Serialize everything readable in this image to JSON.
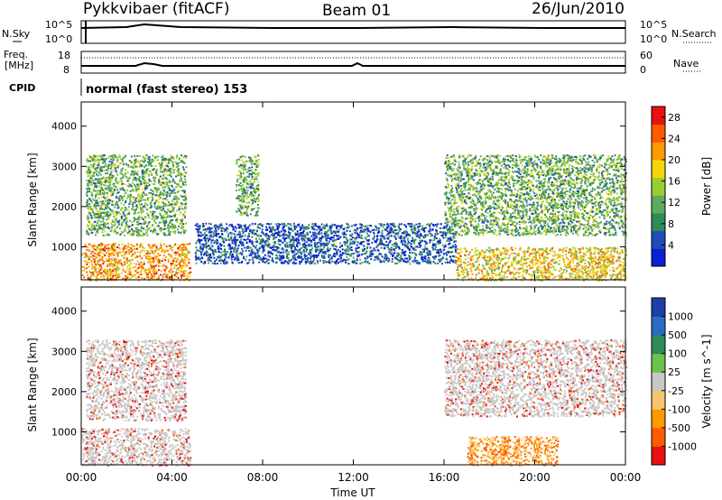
{
  "header": {
    "radar": "Pykkvibaer (fitACF)",
    "beam": "Beam 01",
    "date": "26/Jun/2010"
  },
  "noise_panel": {
    "left_label": "N.Sky",
    "left_ticks": [
      "10^5",
      "10^0"
    ],
    "right_label": "N.Search",
    "right_ticks": [
      "10^5",
      "10^0"
    ]
  },
  "freq_panel": {
    "left_label_line1": "Freq.",
    "left_label_line2": "[MHz]",
    "left_ticks": [
      "18",
      "8"
    ],
    "right_label": "Nave",
    "right_ticks": [
      "60",
      "0"
    ]
  },
  "cpid": {
    "label": "CPID",
    "value": "normal (fast stereo) 153"
  },
  "colors": {
    "power_scale": [
      "#0b1fd6",
      "#1e4db8",
      "#2e8b57",
      "#5faa5f",
      "#9acd32",
      "#f2d60a",
      "#ff9a00",
      "#ff5a00",
      "#e81010"
    ],
    "velocity_scale": [
      "#1e3fa8",
      "#2a6cc2",
      "#2e8b57",
      "#6cc24a",
      "#c8c8c8",
      "#f7c66a",
      "#ff9a00",
      "#ff5a00",
      "#e81010"
    ]
  },
  "chart_data": [
    {
      "type": "heatmap",
      "name": "power",
      "ylabel": "Slant Range [km]",
      "y_ticks": [
        1000,
        2000,
        3000,
        4000
      ],
      "ylim": [
        180,
        4600
      ],
      "x_ticks": [
        "00:00",
        "04:00",
        "08:00",
        "12:00",
        "16:00",
        "20:00",
        "00:00"
      ],
      "xlim_hours": [
        0,
        24
      ],
      "colorbar": {
        "label": "Power [dB]",
        "ticks": [
          4,
          8,
          12,
          16,
          20,
          24,
          28
        ],
        "range": [
          0,
          30
        ]
      },
      "regions": [
        {
          "t": [
            0.2,
            4.6
          ],
          "r": [
            1300,
            3300
          ],
          "value": 12
        },
        {
          "t": [
            0.0,
            4.8
          ],
          "r": [
            180,
            1100
          ],
          "value": 22
        },
        {
          "t": [
            6.8,
            7.8
          ],
          "r": [
            1800,
            3300
          ],
          "value": 10
        },
        {
          "t": [
            5.0,
            16.5
          ],
          "r": [
            600,
            1600
          ],
          "value": 6
        },
        {
          "t": [
            16.0,
            24.0
          ],
          "r": [
            1300,
            3300
          ],
          "value": 10
        },
        {
          "t": [
            16.5,
            24.0
          ],
          "r": [
            180,
            1000
          ],
          "value": 18
        }
      ]
    },
    {
      "type": "heatmap",
      "name": "velocity",
      "ylabel": "Slant Range [km]",
      "y_ticks": [
        1000,
        2000,
        3000,
        4000
      ],
      "ylim": [
        180,
        4600
      ],
      "x_ticks": [
        "00:00",
        "04:00",
        "08:00",
        "12:00",
        "16:00",
        "20:00",
        "00:00"
      ],
      "xlabel": "Time UT",
      "xlim_hours": [
        0,
        24
      ],
      "colorbar": {
        "label": "Velocity [m s^-1]",
        "ticks": [
          1000,
          500,
          100,
          25,
          -25,
          -100,
          -500,
          -1000
        ]
      },
      "regions": [
        {
          "t": [
            0.2,
            4.6
          ],
          "r": [
            1300,
            3300
          ],
          "value": 0
        },
        {
          "t": [
            0.0,
            4.8
          ],
          "r": [
            180,
            1100
          ],
          "value": 0
        },
        {
          "t": [
            16.0,
            24.0
          ],
          "r": [
            1400,
            3300
          ],
          "value": 0
        },
        {
          "t": [
            17.0,
            21.0
          ],
          "r": [
            180,
            900
          ],
          "value": -150
        }
      ]
    }
  ]
}
